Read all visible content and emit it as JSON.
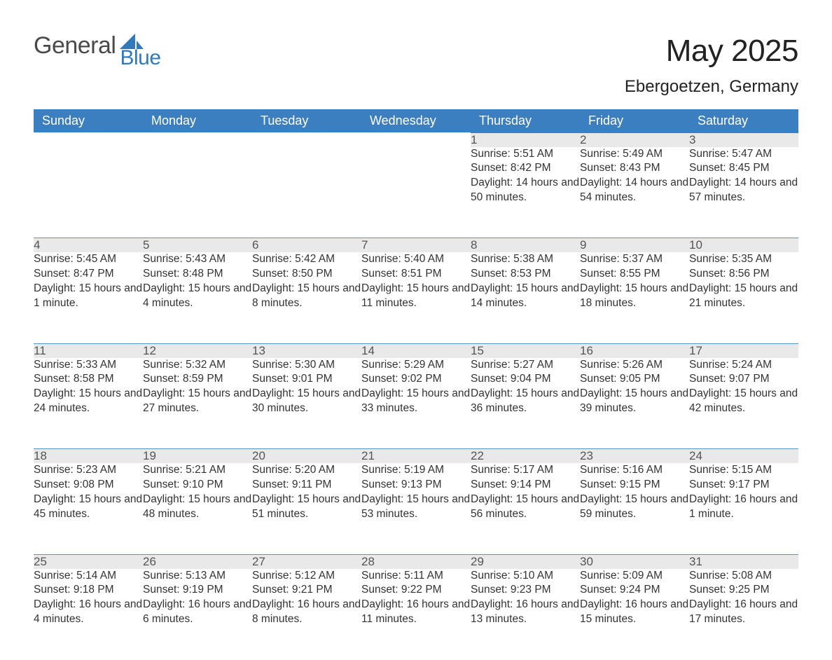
{
  "brand": {
    "word1": "General",
    "word2": "Blue"
  },
  "title": "May 2025",
  "location": "Ebergoetzen, Germany",
  "colors": {
    "brand_blue": "#2f79bd",
    "header_row_bg": "#3b7fc0",
    "day_stripe_bg": "#e9e9e9",
    "rule_blue": "#5a93c8",
    "background": "#ffffff",
    "text": "#333333"
  },
  "weekdays": [
    "Sunday",
    "Monday",
    "Tuesday",
    "Wednesday",
    "Thursday",
    "Friday",
    "Saturday"
  ],
  "firstDayOffset": 4,
  "days": [
    {
      "n": 1,
      "sunrise": "5:51 AM",
      "sunset": "8:42 PM",
      "daylight": "14 hours and 50 minutes."
    },
    {
      "n": 2,
      "sunrise": "5:49 AM",
      "sunset": "8:43 PM",
      "daylight": "14 hours and 54 minutes."
    },
    {
      "n": 3,
      "sunrise": "5:47 AM",
      "sunset": "8:45 PM",
      "daylight": "14 hours and 57 minutes."
    },
    {
      "n": 4,
      "sunrise": "5:45 AM",
      "sunset": "8:47 PM",
      "daylight": "15 hours and 1 minute."
    },
    {
      "n": 5,
      "sunrise": "5:43 AM",
      "sunset": "8:48 PM",
      "daylight": "15 hours and 4 minutes."
    },
    {
      "n": 6,
      "sunrise": "5:42 AM",
      "sunset": "8:50 PM",
      "daylight": "15 hours and 8 minutes."
    },
    {
      "n": 7,
      "sunrise": "5:40 AM",
      "sunset": "8:51 PM",
      "daylight": "15 hours and 11 minutes."
    },
    {
      "n": 8,
      "sunrise": "5:38 AM",
      "sunset": "8:53 PM",
      "daylight": "15 hours and 14 minutes."
    },
    {
      "n": 9,
      "sunrise": "5:37 AM",
      "sunset": "8:55 PM",
      "daylight": "15 hours and 18 minutes."
    },
    {
      "n": 10,
      "sunrise": "5:35 AM",
      "sunset": "8:56 PM",
      "daylight": "15 hours and 21 minutes."
    },
    {
      "n": 11,
      "sunrise": "5:33 AM",
      "sunset": "8:58 PM",
      "daylight": "15 hours and 24 minutes."
    },
    {
      "n": 12,
      "sunrise": "5:32 AM",
      "sunset": "8:59 PM",
      "daylight": "15 hours and 27 minutes."
    },
    {
      "n": 13,
      "sunrise": "5:30 AM",
      "sunset": "9:01 PM",
      "daylight": "15 hours and 30 minutes."
    },
    {
      "n": 14,
      "sunrise": "5:29 AM",
      "sunset": "9:02 PM",
      "daylight": "15 hours and 33 minutes."
    },
    {
      "n": 15,
      "sunrise": "5:27 AM",
      "sunset": "9:04 PM",
      "daylight": "15 hours and 36 minutes."
    },
    {
      "n": 16,
      "sunrise": "5:26 AM",
      "sunset": "9:05 PM",
      "daylight": "15 hours and 39 minutes."
    },
    {
      "n": 17,
      "sunrise": "5:24 AM",
      "sunset": "9:07 PM",
      "daylight": "15 hours and 42 minutes."
    },
    {
      "n": 18,
      "sunrise": "5:23 AM",
      "sunset": "9:08 PM",
      "daylight": "15 hours and 45 minutes."
    },
    {
      "n": 19,
      "sunrise": "5:21 AM",
      "sunset": "9:10 PM",
      "daylight": "15 hours and 48 minutes."
    },
    {
      "n": 20,
      "sunrise": "5:20 AM",
      "sunset": "9:11 PM",
      "daylight": "15 hours and 51 minutes."
    },
    {
      "n": 21,
      "sunrise": "5:19 AM",
      "sunset": "9:13 PM",
      "daylight": "15 hours and 53 minutes."
    },
    {
      "n": 22,
      "sunrise": "5:17 AM",
      "sunset": "9:14 PM",
      "daylight": "15 hours and 56 minutes."
    },
    {
      "n": 23,
      "sunrise": "5:16 AM",
      "sunset": "9:15 PM",
      "daylight": "15 hours and 59 minutes."
    },
    {
      "n": 24,
      "sunrise": "5:15 AM",
      "sunset": "9:17 PM",
      "daylight": "16 hours and 1 minute."
    },
    {
      "n": 25,
      "sunrise": "5:14 AM",
      "sunset": "9:18 PM",
      "daylight": "16 hours and 4 minutes."
    },
    {
      "n": 26,
      "sunrise": "5:13 AM",
      "sunset": "9:19 PM",
      "daylight": "16 hours and 6 minutes."
    },
    {
      "n": 27,
      "sunrise": "5:12 AM",
      "sunset": "9:21 PM",
      "daylight": "16 hours and 8 minutes."
    },
    {
      "n": 28,
      "sunrise": "5:11 AM",
      "sunset": "9:22 PM",
      "daylight": "16 hours and 11 minutes."
    },
    {
      "n": 29,
      "sunrise": "5:10 AM",
      "sunset": "9:23 PM",
      "daylight": "16 hours and 13 minutes."
    },
    {
      "n": 30,
      "sunrise": "5:09 AM",
      "sunset": "9:24 PM",
      "daylight": "16 hours and 15 minutes."
    },
    {
      "n": 31,
      "sunrise": "5:08 AM",
      "sunset": "9:25 PM",
      "daylight": "16 hours and 17 minutes."
    }
  ],
  "labels": {
    "sunrise": "Sunrise:",
    "sunset": "Sunset:",
    "daylight": "Daylight:"
  }
}
